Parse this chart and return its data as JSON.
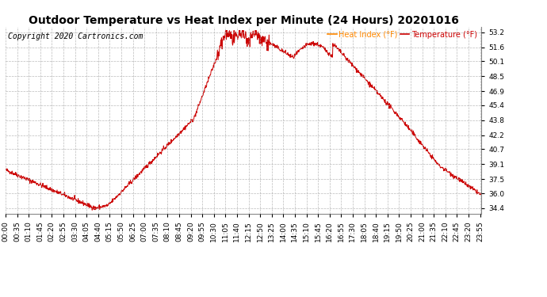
{
  "title": "Outdoor Temperature vs Heat Index per Minute (24 Hours) 20201016",
  "copyright": "Copyright 2020 Cartronics.com",
  "legend_heat": "Heat Index (°F)",
  "legend_temp": "Temperature (°F)",
  "legend_heat_color": "#ff8800",
  "legend_temp_color": "#cc0000",
  "line_color": "#cc0000",
  "background_color": "#ffffff",
  "grid_color": "#aaaaaa",
  "yticks": [
    34.4,
    36.0,
    37.5,
    39.1,
    40.7,
    42.2,
    43.8,
    45.4,
    46.9,
    48.5,
    50.1,
    51.6,
    53.2
  ],
  "ylim": [
    33.8,
    53.8
  ],
  "title_fontsize": 10,
  "tick_fontsize": 6.5,
  "copyright_fontsize": 7
}
